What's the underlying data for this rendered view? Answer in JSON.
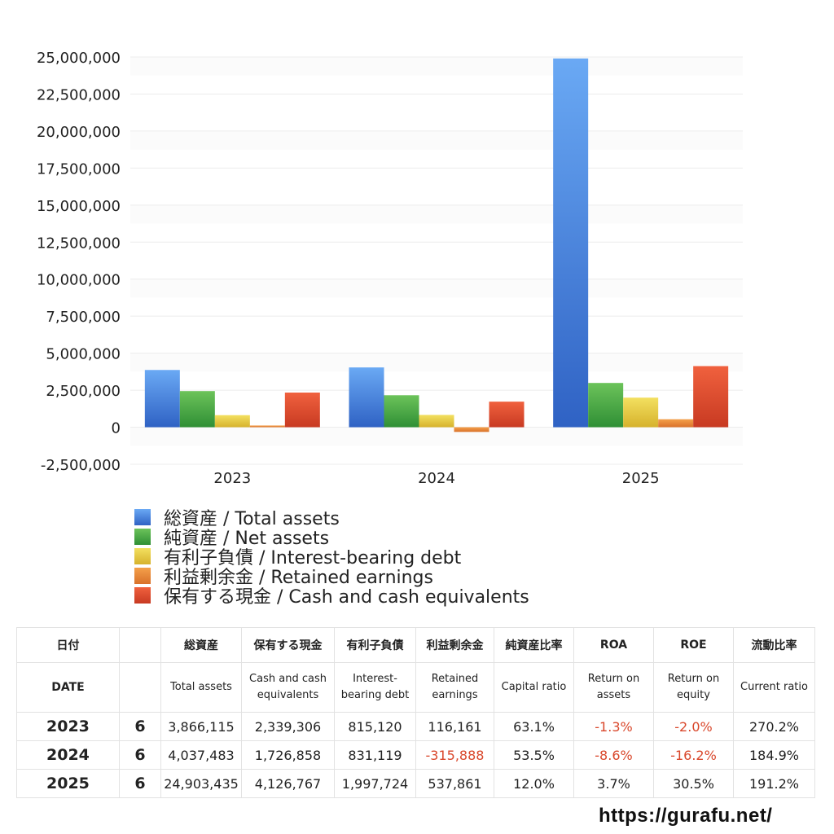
{
  "chart_data": {
    "type": "bar",
    "categories": [
      "2023",
      "2024",
      "2025"
    ],
    "series": [
      {
        "name": "総資産 / Total assets",
        "values": [
          3866115,
          4037483,
          24903435
        ],
        "color_top": "#6aa9f4",
        "color_bottom": "#2f62c4"
      },
      {
        "name": "純資産 / Net assets",
        "values": [
          2440000,
          2160000,
          2990000
        ],
        "color_top": "#6cc35a",
        "color_bottom": "#2f8f35"
      },
      {
        "name": "有利子負債 / Interest-bearing debt",
        "values": [
          815120,
          831119,
          1997724
        ],
        "color_top": "#f3e060",
        "color_bottom": "#d6b22c"
      },
      {
        "name": "利益剰余金 / Retained earnings",
        "values": [
          116161,
          -315888,
          537861
        ],
        "color_top": "#f4a04a",
        "color_bottom": "#d9712a"
      },
      {
        "name": "保有する現金 /  Cash and cash equivalents",
        "values": [
          2339306,
          1726858,
          4126767
        ],
        "color_top": "#f0613e",
        "color_bottom": "#c83a22"
      }
    ],
    "ylim": [
      -2500000,
      25000000
    ],
    "yticks": [
      "25,000,000",
      "22,500,000",
      "20,000,000",
      "17,500,000",
      "15,000,000",
      "12,500,000",
      "10,000,000",
      "7,500,000",
      "5,000,000",
      "2,500,000",
      "0",
      "-2,500,000"
    ],
    "grid": true,
    "legend_position": "bottom"
  },
  "table": {
    "headers_ja": [
      "日付",
      "",
      "総資産",
      "保有する現金",
      "有利子負債",
      "利益剰余金",
      "純資産比率",
      "ROA",
      "ROE",
      "流動比率"
    ],
    "headers_en": [
      "DATE",
      "",
      "Total assets",
      "Cash and cash equivalents",
      "Interest-bearing debt",
      "Retained earnings",
      "Capital ratio",
      "Return on assets",
      "Return on equity",
      "Current ratio"
    ],
    "rows": [
      {
        "year": "2023",
        "month": "6",
        "total_assets": "3,866,115",
        "cash": "2,339,306",
        "debt": "815,120",
        "retained": "116,161",
        "capital_ratio": "63.1%",
        "roa": "-1.3%",
        "roe": "-2.0%",
        "current_ratio": "270.2%"
      },
      {
        "year": "2024",
        "month": "6",
        "total_assets": "4,037,483",
        "cash": "1,726,858",
        "debt": "831,119",
        "retained": "-315,888",
        "capital_ratio": "53.5%",
        "roa": "-8.6%",
        "roe": "-16.2%",
        "current_ratio": "184.9%"
      },
      {
        "year": "2025",
        "month": "6",
        "total_assets": "24,903,435",
        "cash": "4,126,767",
        "debt": "1,997,724",
        "retained": "537,861",
        "capital_ratio": "12.0%",
        "roa": "3.7%",
        "roe": "30.5%",
        "current_ratio": "191.2%"
      }
    ]
  },
  "footer": {
    "url": "https://gurafu.net/"
  },
  "colors": {
    "negative": "#d9472b"
  }
}
